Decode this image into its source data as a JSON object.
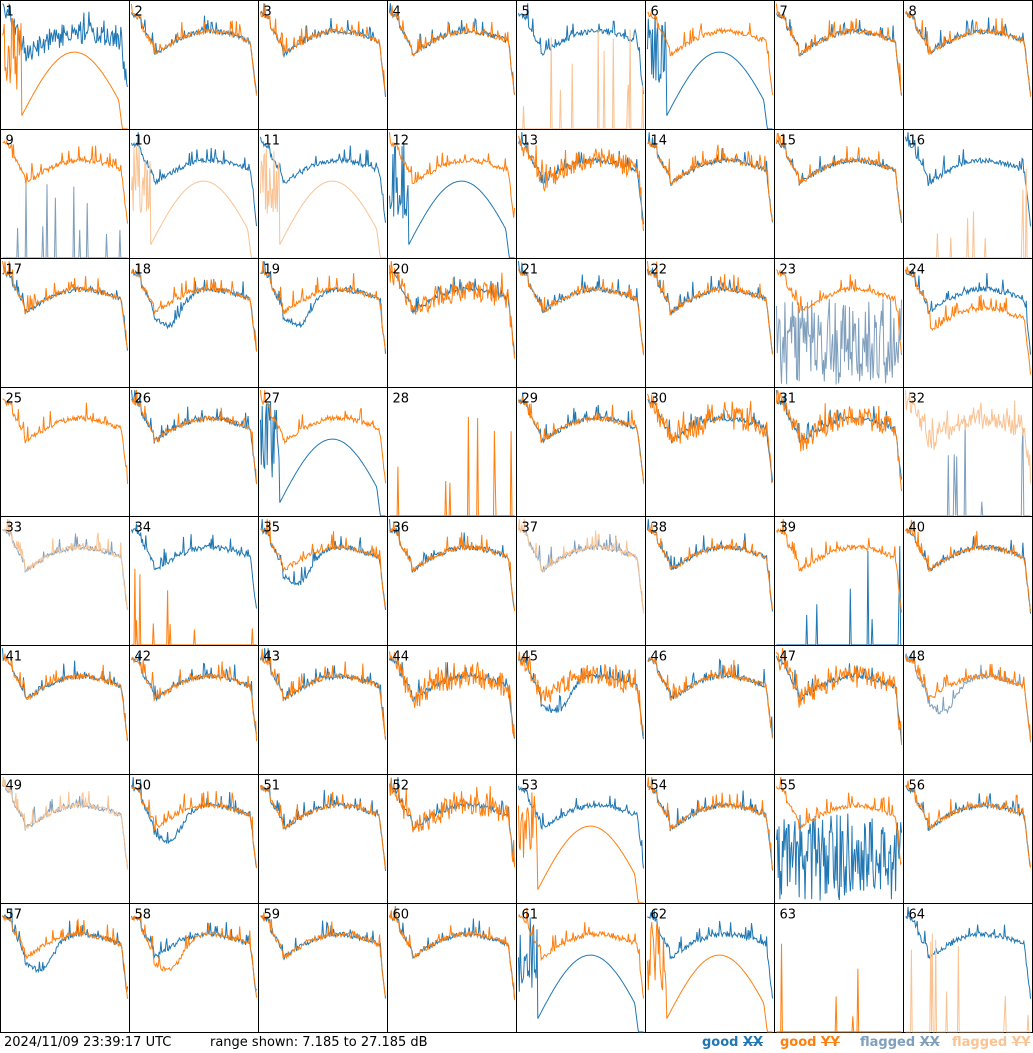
{
  "footer": {
    "timestamp": "2024/11/09 23:39:17 UTC",
    "range_text": "range shown: 7.185 to 27.185 dB",
    "legend": {
      "good": "good",
      "flagged": "flagged",
      "xx": "XX",
      "yy": "YY"
    }
  },
  "colors": {
    "good_xx": "#1f77b4",
    "good_yy": "#ff7f0e",
    "flagged_xx": "#7f9fbd",
    "flagged_yy": "#f9c393",
    "frame": "#000000"
  },
  "chart_data": {
    "type": "line",
    "grid": {
      "rows": 8,
      "cols": 8
    },
    "ylim": [
      7.185,
      27.185
    ],
    "yunit": "dB",
    "panels": [
      {
        "id": "1",
        "xx": "good",
        "yy": "good",
        "xx_shape": "noisy",
        "yy_shape": "bowl"
      },
      {
        "id": "2",
        "xx": "good",
        "yy": "good",
        "xx_shape": "normal",
        "yy_shape": "normal"
      },
      {
        "id": "3",
        "xx": "good",
        "yy": "good",
        "xx_shape": "normal",
        "yy_shape": "normal"
      },
      {
        "id": "4",
        "xx": "good",
        "yy": "good",
        "xx_shape": "normal",
        "yy_shape": "normal"
      },
      {
        "id": "5",
        "xx": "good",
        "yy": "flagged",
        "xx_shape": "normal",
        "yy_shape": "spikes"
      },
      {
        "id": "6",
        "xx": "good",
        "yy": "good",
        "xx_shape": "bowl",
        "yy_shape": "normal"
      },
      {
        "id": "7",
        "xx": "good",
        "yy": "good",
        "xx_shape": "normal",
        "yy_shape": "normal"
      },
      {
        "id": "8",
        "xx": "good",
        "yy": "good",
        "xx_shape": "normal",
        "yy_shape": "normal"
      },
      {
        "id": "9",
        "xx": "flagged",
        "yy": "good",
        "xx_shape": "spikes",
        "yy_shape": "normal"
      },
      {
        "id": "10",
        "xx": "good",
        "yy": "flagged",
        "xx_shape": "normal",
        "yy_shape": "bowl"
      },
      {
        "id": "11",
        "xx": "good",
        "yy": "flagged",
        "xx_shape": "normal",
        "yy_shape": "bowl"
      },
      {
        "id": "12",
        "xx": "good",
        "yy": "good",
        "xx_shape": "bowl",
        "yy_shape": "normal"
      },
      {
        "id": "13",
        "xx": "good",
        "yy": "good",
        "xx_shape": "normal",
        "yy_shape": "noisy"
      },
      {
        "id": "14",
        "xx": "good",
        "yy": "good",
        "xx_shape": "normal",
        "yy_shape": "normal"
      },
      {
        "id": "15",
        "xx": "good",
        "yy": "good",
        "xx_shape": "normal",
        "yy_shape": "normal"
      },
      {
        "id": "16",
        "xx": "good",
        "yy": "flagged",
        "xx_shape": "normal",
        "yy_shape": "spikes"
      },
      {
        "id": "17",
        "xx": "good",
        "yy": "good",
        "xx_shape": "normal",
        "yy_shape": "normal"
      },
      {
        "id": "18",
        "xx": "good",
        "yy": "good",
        "xx_shape": "dip",
        "yy_shape": "normal"
      },
      {
        "id": "19",
        "xx": "good",
        "yy": "good",
        "xx_shape": "dip",
        "yy_shape": "normal"
      },
      {
        "id": "20",
        "xx": "good",
        "yy": "good",
        "xx_shape": "normal",
        "yy_shape": "noisy"
      },
      {
        "id": "21",
        "xx": "good",
        "yy": "good",
        "xx_shape": "normal",
        "yy_shape": "normal"
      },
      {
        "id": "22",
        "xx": "good",
        "yy": "good",
        "xx_shape": "normal",
        "yy_shape": "normal"
      },
      {
        "id": "23",
        "xx": "flagged",
        "yy": "good",
        "xx_shape": "chaotic",
        "yy_shape": "normal"
      },
      {
        "id": "24",
        "xx": "good",
        "yy": "good",
        "xx_shape": "normal",
        "yy_shape": "low"
      },
      {
        "id": "25",
        "xx": "good",
        "yy": "good",
        "xx_shape": "hidden",
        "yy_shape": "normal"
      },
      {
        "id": "26",
        "xx": "good",
        "yy": "good",
        "xx_shape": "normal",
        "yy_shape": "normal"
      },
      {
        "id": "27",
        "xx": "good",
        "yy": "good",
        "xx_shape": "bowl",
        "yy_shape": "normal"
      },
      {
        "id": "28",
        "xx": "good",
        "yy": "good",
        "xx_shape": "flat",
        "yy_shape": "spikes"
      },
      {
        "id": "29",
        "xx": "good",
        "yy": "good",
        "xx_shape": "normal",
        "yy_shape": "normal"
      },
      {
        "id": "30",
        "xx": "good",
        "yy": "good",
        "xx_shape": "normal",
        "yy_shape": "noisy"
      },
      {
        "id": "31",
        "xx": "good",
        "yy": "good",
        "xx_shape": "normal",
        "yy_shape": "noisy"
      },
      {
        "id": "32",
        "xx": "flagged",
        "yy": "flagged",
        "xx_shape": "spikes",
        "yy_shape": "noisy"
      },
      {
        "id": "33",
        "xx": "flagged",
        "yy": "flagged",
        "xx_shape": "normal",
        "yy_shape": "normal"
      },
      {
        "id": "34",
        "xx": "good",
        "yy": "good",
        "xx_shape": "normal",
        "yy_shape": "spikes"
      },
      {
        "id": "35",
        "xx": "good",
        "yy": "good",
        "xx_shape": "dip",
        "yy_shape": "normal"
      },
      {
        "id": "36",
        "xx": "good",
        "yy": "good",
        "xx_shape": "normal",
        "yy_shape": "normal"
      },
      {
        "id": "37",
        "xx": "flagged",
        "yy": "flagged",
        "xx_shape": "normal",
        "yy_shape": "normal"
      },
      {
        "id": "38",
        "xx": "good",
        "yy": "good",
        "xx_shape": "normal",
        "yy_shape": "normal"
      },
      {
        "id": "39",
        "xx": "good",
        "yy": "good",
        "xx_shape": "spikes",
        "yy_shape": "normal"
      },
      {
        "id": "40",
        "xx": "good",
        "yy": "good",
        "xx_shape": "normal",
        "yy_shape": "normal"
      },
      {
        "id": "41",
        "xx": "good",
        "yy": "good",
        "xx_shape": "normal",
        "yy_shape": "normal"
      },
      {
        "id": "42",
        "xx": "good",
        "yy": "good",
        "xx_shape": "normal",
        "yy_shape": "normal"
      },
      {
        "id": "43",
        "xx": "good",
        "yy": "good",
        "xx_shape": "normal",
        "yy_shape": "normal"
      },
      {
        "id": "44",
        "xx": "good",
        "yy": "good",
        "xx_shape": "normal",
        "yy_shape": "noisy"
      },
      {
        "id": "45",
        "xx": "good",
        "yy": "good",
        "xx_shape": "dip",
        "yy_shape": "noisy"
      },
      {
        "id": "46",
        "xx": "good",
        "yy": "good",
        "xx_shape": "normal",
        "yy_shape": "normal"
      },
      {
        "id": "47",
        "xx": "good",
        "yy": "good",
        "xx_shape": "normal",
        "yy_shape": "noisy"
      },
      {
        "id": "48",
        "xx": "flagged",
        "yy": "good",
        "xx_shape": "dip",
        "yy_shape": "normal"
      },
      {
        "id": "49",
        "xx": "flagged",
        "yy": "flagged",
        "xx_shape": "normal",
        "yy_shape": "normal"
      },
      {
        "id": "50",
        "xx": "good",
        "yy": "good",
        "xx_shape": "dip",
        "yy_shape": "normal"
      },
      {
        "id": "51",
        "xx": "good",
        "yy": "good",
        "xx_shape": "normal",
        "yy_shape": "normal"
      },
      {
        "id": "52",
        "xx": "good",
        "yy": "good",
        "xx_shape": "normal",
        "yy_shape": "noisy"
      },
      {
        "id": "53",
        "xx": "good",
        "yy": "good",
        "xx_shape": "normal",
        "yy_shape": "bowl"
      },
      {
        "id": "54",
        "xx": "good",
        "yy": "good",
        "xx_shape": "normal",
        "yy_shape": "normal"
      },
      {
        "id": "55",
        "xx": "good",
        "yy": "good",
        "xx_shape": "chaotic",
        "yy_shape": "normal"
      },
      {
        "id": "56",
        "xx": "good",
        "yy": "good",
        "xx_shape": "normal",
        "yy_shape": "normal"
      },
      {
        "id": "57",
        "xx": "good",
        "yy": "good",
        "xx_shape": "dip",
        "yy_shape": "normal"
      },
      {
        "id": "58",
        "xx": "good",
        "yy": "good",
        "xx_shape": "normal",
        "yy_shape": "dip"
      },
      {
        "id": "59",
        "xx": "good",
        "yy": "good",
        "xx_shape": "normal",
        "yy_shape": "normal"
      },
      {
        "id": "60",
        "xx": "good",
        "yy": "good",
        "xx_shape": "normal",
        "yy_shape": "normal"
      },
      {
        "id": "61",
        "xx": "good",
        "yy": "good",
        "xx_shape": "bowl",
        "yy_shape": "normal"
      },
      {
        "id": "62",
        "xx": "good",
        "yy": "good",
        "xx_shape": "normal",
        "yy_shape": "bowl"
      },
      {
        "id": "63",
        "xx": "good",
        "yy": "good",
        "xx_shape": "flat",
        "yy_shape": "spikes"
      },
      {
        "id": "64",
        "xx": "good",
        "yy": "flagged",
        "xx_shape": "normal",
        "yy_shape": "spikes"
      }
    ]
  }
}
